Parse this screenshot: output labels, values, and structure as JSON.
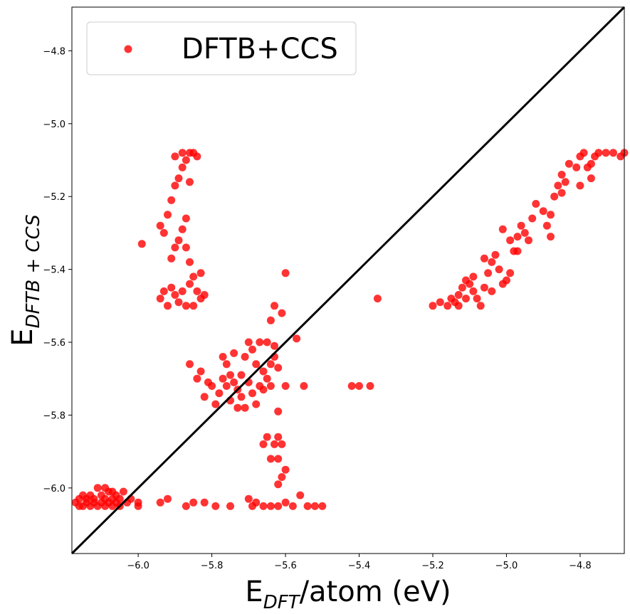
{
  "chart_data": {
    "type": "scatter",
    "xlabel_main": "E",
    "xlabel_sub": "DFT",
    "xlabel_rest": "/atom (eV)",
    "ylabel_main": "E",
    "ylabel_sub": "DFTB + CCS",
    "xlim": [
      -6.18,
      -4.68
    ],
    "ylim": [
      -6.18,
      -4.68
    ],
    "x_ticks": [
      -6.0,
      -5.8,
      -5.6,
      -5.4,
      -5.2,
      -5.0,
      -4.8
    ],
    "x_tick_labels": [
      "−6.0",
      "−5.8",
      "−5.6",
      "−5.4",
      "−5.2",
      "−5.0",
      "−4.8"
    ],
    "y_ticks": [
      -6.0,
      -5.8,
      -5.6,
      -5.4,
      -5.2,
      -5.0,
      -4.8
    ],
    "y_tick_labels": [
      "−6.0",
      "−5.8",
      "−5.6",
      "−5.4",
      "−5.2",
      "−5.0",
      "−4.8"
    ],
    "grid": false,
    "legend_position": "top-left",
    "reference_line": {
      "from": [
        -6.18,
        -6.18
      ],
      "to": [
        -4.68,
        -4.68
      ],
      "color": "#000000"
    },
    "series": [
      {
        "name": "DFTB+CCS",
        "color": "#ff0000",
        "points": [
          [
            -6.17,
            -6.04
          ],
          [
            -6.16,
            -6.05
          ],
          [
            -6.16,
            -6.03
          ],
          [
            -6.15,
            -6.02
          ],
          [
            -6.15,
            -6.05
          ],
          [
            -6.14,
            -6.04
          ],
          [
            -6.14,
            -6.03
          ],
          [
            -6.13,
            -6.02
          ],
          [
            -6.13,
            -6.05
          ],
          [
            -6.12,
            -6.04
          ],
          [
            -6.12,
            -6.03
          ],
          [
            -6.11,
            -6.05
          ],
          [
            -6.1,
            -6.04
          ],
          [
            -6.1,
            -6.02
          ],
          [
            -6.09,
            -6.03
          ],
          [
            -6.09,
            -6.05
          ],
          [
            -6.08,
            -6.04
          ],
          [
            -6.08,
            -6.01
          ],
          [
            -6.07,
            -6.03
          ],
          [
            -6.07,
            -6.05
          ],
          [
            -6.06,
            -6.04
          ],
          [
            -6.06,
            -6.02
          ],
          [
            -6.05,
            -6.03
          ],
          [
            -6.05,
            -6.05
          ],
          [
            -6.04,
            -6.01
          ],
          [
            -6.03,
            -6.04
          ],
          [
            -6.02,
            -6.03
          ],
          [
            -6.0,
            -6.05
          ],
          [
            -6.0,
            -6.04
          ],
          [
            -6.11,
            -6.0
          ],
          [
            -6.09,
            -6.0
          ],
          [
            -6.07,
            -6.01
          ],
          [
            -5.92,
            -6.03
          ],
          [
            -5.94,
            -6.04
          ],
          [
            -5.87,
            -6.05
          ],
          [
            -5.85,
            -6.04
          ],
          [
            -5.82,
            -6.04
          ],
          [
            -5.79,
            -6.05
          ],
          [
            -5.75,
            -6.05
          ],
          [
            -5.7,
            -6.03
          ],
          [
            -5.69,
            -6.05
          ],
          [
            -5.68,
            -6.04
          ],
          [
            -5.66,
            -6.05
          ],
          [
            -5.64,
            -6.05
          ],
          [
            -5.62,
            -6.05
          ],
          [
            -5.6,
            -6.04
          ],
          [
            -5.58,
            -6.05
          ],
          [
            -5.56,
            -6.02
          ],
          [
            -5.54,
            -6.05
          ],
          [
            -5.52,
            -6.05
          ],
          [
            -5.5,
            -6.05
          ],
          [
            -5.62,
            -5.99
          ],
          [
            -5.61,
            -5.97
          ],
          [
            -5.6,
            -5.95
          ],
          [
            -5.62,
            -5.92
          ],
          [
            -5.63,
            -5.88
          ],
          [
            -5.65,
            -5.86
          ],
          [
            -5.64,
            -5.92
          ],
          [
            -5.61,
            -5.88
          ],
          [
            -5.62,
            -5.86
          ],
          [
            -5.66,
            -5.88
          ],
          [
            -5.86,
            -5.66
          ],
          [
            -5.84,
            -5.7
          ],
          [
            -5.83,
            -5.68
          ],
          [
            -5.82,
            -5.75
          ],
          [
            -5.8,
            -5.72
          ],
          [
            -5.78,
            -5.74
          ],
          [
            -5.77,
            -5.7
          ],
          [
            -5.76,
            -5.72
          ],
          [
            -5.75,
            -5.69
          ],
          [
            -5.74,
            -5.71
          ],
          [
            -5.73,
            -5.73
          ],
          [
            -5.72,
            -5.75
          ],
          [
            -5.71,
            -5.78
          ],
          [
            -5.73,
            -5.78
          ],
          [
            -5.75,
            -5.76
          ],
          [
            -5.77,
            -5.64
          ],
          [
            -5.76,
            -5.66
          ],
          [
            -5.74,
            -5.63
          ],
          [
            -5.72,
            -5.69
          ],
          [
            -5.7,
            -5.71
          ],
          [
            -5.69,
            -5.74
          ],
          [
            -5.68,
            -5.77
          ],
          [
            -5.67,
            -5.72
          ],
          [
            -5.66,
            -5.68
          ],
          [
            -5.65,
            -5.7
          ],
          [
            -5.64,
            -5.66
          ],
          [
            -5.63,
            -5.64
          ],
          [
            -5.62,
            -5.67
          ],
          [
            -5.64,
            -5.72
          ],
          [
            -5.66,
            -5.73
          ],
          [
            -5.68,
            -5.66
          ],
          [
            -5.69,
            -5.62
          ],
          [
            -5.67,
            -5.6
          ],
          [
            -5.65,
            -5.6
          ],
          [
            -5.63,
            -5.61
          ],
          [
            -5.7,
            -5.6
          ],
          [
            -5.71,
            -5.64
          ],
          [
            -5.62,
            -5.79
          ],
          [
            -5.6,
            -5.72
          ],
          [
            -5.79,
            -5.77
          ],
          [
            -5.81,
            -5.71
          ],
          [
            -5.64,
            -5.54
          ],
          [
            -5.63,
            -5.5
          ],
          [
            -5.61,
            -5.52
          ],
          [
            -5.6,
            -5.41
          ],
          [
            -5.57,
            -5.59
          ],
          [
            -5.55,
            -5.72
          ],
          [
            -5.42,
            -5.72
          ],
          [
            -5.4,
            -5.72
          ],
          [
            -5.37,
            -5.72
          ],
          [
            -5.35,
            -5.48
          ],
          [
            -5.99,
            -5.33
          ],
          [
            -5.94,
            -5.28
          ],
          [
            -5.93,
            -5.3
          ],
          [
            -5.92,
            -5.25
          ],
          [
            -5.91,
            -5.21
          ],
          [
            -5.9,
            -5.17
          ],
          [
            -5.89,
            -5.15
          ],
          [
            -5.88,
            -5.12
          ],
          [
            -5.87,
            -5.1
          ],
          [
            -5.86,
            -5.08
          ],
          [
            -5.88,
            -5.08
          ],
          [
            -5.9,
            -5.09
          ],
          [
            -5.85,
            -5.08
          ],
          [
            -5.84,
            -5.09
          ],
          [
            -5.86,
            -5.16
          ],
          [
            -5.87,
            -5.26
          ],
          [
            -5.88,
            -5.29
          ],
          [
            -5.89,
            -5.32
          ],
          [
            -5.9,
            -5.34
          ],
          [
            -5.91,
            -5.37
          ],
          [
            -5.87,
            -5.34
          ],
          [
            -5.86,
            -5.38
          ],
          [
            -5.85,
            -5.42
          ],
          [
            -5.84,
            -5.46
          ],
          [
            -5.83,
            -5.48
          ],
          [
            -5.86,
            -5.44
          ],
          [
            -5.88,
            -5.46
          ],
          [
            -5.89,
            -5.49
          ],
          [
            -5.9,
            -5.47
          ],
          [
            -5.91,
            -5.45
          ],
          [
            -5.93,
            -5.46
          ],
          [
            -5.94,
            -5.48
          ],
          [
            -5.92,
            -5.5
          ],
          [
            -5.87,
            -5.5
          ],
          [
            -5.85,
            -5.5
          ],
          [
            -5.82,
            -5.47
          ],
          [
            -5.83,
            -5.41
          ],
          [
            -5.2,
            -5.5
          ],
          [
            -5.18,
            -5.49
          ],
          [
            -5.16,
            -5.5
          ],
          [
            -5.15,
            -5.48
          ],
          [
            -5.14,
            -5.49
          ],
          [
            -5.13,
            -5.47
          ],
          [
            -5.12,
            -5.45
          ],
          [
            -5.11,
            -5.43
          ],
          [
            -5.1,
            -5.44
          ],
          [
            -5.09,
            -5.46
          ],
          [
            -5.08,
            -5.48
          ],
          [
            -5.07,
            -5.5
          ],
          [
            -5.06,
            -5.45
          ],
          [
            -5.05,
            -5.41
          ],
          [
            -5.04,
            -5.38
          ],
          [
            -5.03,
            -5.36
          ],
          [
            -5.02,
            -5.4
          ],
          [
            -5.01,
            -5.44
          ],
          [
            -5.0,
            -5.43
          ],
          [
            -4.99,
            -5.41
          ],
          [
            -4.98,
            -5.35
          ],
          [
            -4.97,
            -5.31
          ],
          [
            -4.96,
            -5.28
          ],
          [
            -4.95,
            -5.3
          ],
          [
            -4.94,
            -5.32
          ],
          [
            -4.93,
            -5.26
          ],
          [
            -4.92,
            -5.22
          ],
          [
            -4.9,
            -5.24
          ],
          [
            -4.89,
            -5.28
          ],
          [
            -4.88,
            -5.31
          ],
          [
            -4.87,
            -5.2
          ],
          [
            -4.86,
            -5.17
          ],
          [
            -4.85,
            -5.14
          ],
          [
            -4.84,
            -5.16
          ],
          [
            -4.83,
            -5.11
          ],
          [
            -4.81,
            -5.12
          ],
          [
            -4.8,
            -5.09
          ],
          [
            -4.79,
            -5.08
          ],
          [
            -4.78,
            -5.12
          ],
          [
            -4.77,
            -5.15
          ],
          [
            -4.76,
            -5.09
          ],
          [
            -4.75,
            -5.08
          ],
          [
            -4.73,
            -5.08
          ],
          [
            -4.71,
            -5.08
          ],
          [
            -4.69,
            -5.09
          ],
          [
            -4.68,
            -5.08
          ],
          [
            -5.06,
            -5.37
          ],
          [
            -5.09,
            -5.42
          ],
          [
            -5.11,
            -5.48
          ],
          [
            -5.13,
            -5.5
          ],
          [
            -5.04,
            -5.46
          ],
          [
            -5.01,
            -5.29
          ],
          [
            -4.99,
            -5.32
          ],
          [
            -4.97,
            -5.35
          ],
          [
            -4.88,
            -5.25
          ],
          [
            -4.85,
            -5.19
          ],
          [
            -4.8,
            -5.17
          ],
          [
            -4.77,
            -5.11
          ]
        ]
      }
    ]
  }
}
